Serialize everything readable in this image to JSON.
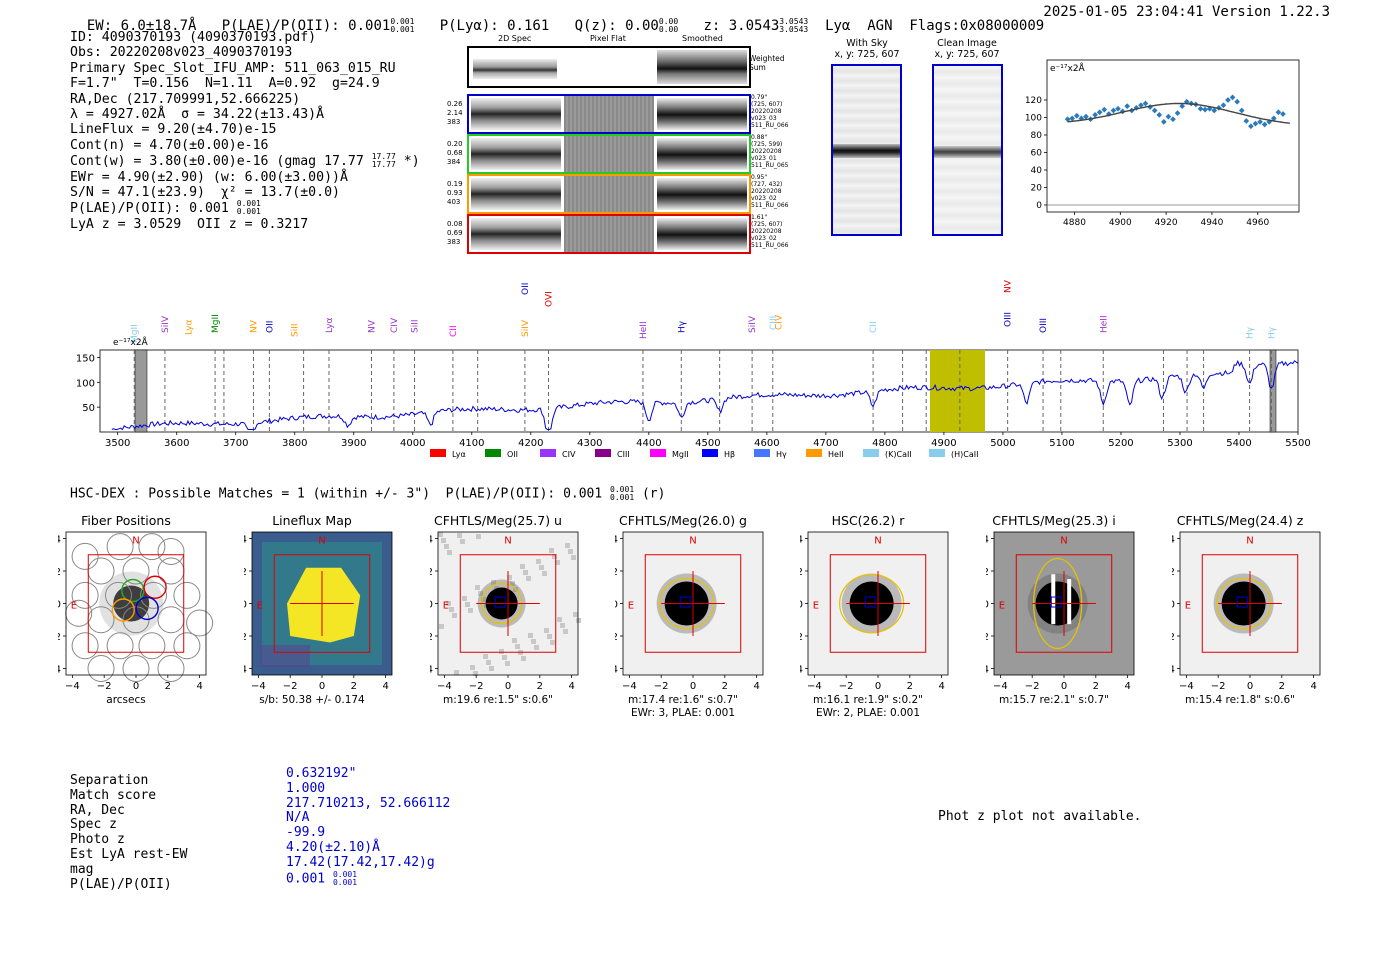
{
  "header": {
    "ew": "EW: 6.0±18.7Å",
    "plae": "P(LAE)/P(OII): 0.001",
    "plae_hi": "0.001",
    "plae_lo": "0.001",
    "plya": "P(Lyα): 0.161",
    "qz": "Q(z): 0.00",
    "qz_hi": "0.00",
    "qz_lo": "0.00",
    "z": "z: 3.0543",
    "z_hi": "3.0543",
    "z_lo": "3.0543",
    "tags": "Lyα  AGN  Flags:0x08000009",
    "timestamp": "2025-01-05 23:04:41  Version 1.22.3"
  },
  "info": {
    "id": "ID: 4090370193 (4090370193.pdf)",
    "obs": "Obs: 20220208v023_4090370193",
    "primary": "Primary Spec_Slot_IFU_AMP: 511_063_015_RU",
    "fiber": "F=1.7\"  T=0.156  N=1.11  A=0.92  g=24.9",
    "radec": "RA,Dec (217.709991,52.666225)",
    "lambda": "λ = 4927.02Å  σ = 34.22(±13.43)Å",
    "lineflux": "LineFlux = 9.20(±4.70)e-15",
    "contn": "Cont(n) = 4.70(±0.00)e-16",
    "contw": "Cont(w) = 3.80(±0.00)e-16 (gmag 17.77",
    "contw_hi": "17.77",
    "contw_lo": "17.77",
    "contw_end": " *)",
    "ewr": "EWr = 4.90(±2.90) (w: 6.00(±3.00))Å",
    "sn": "S/N = 47.1(±23.9)  χ² = 13.7(±0.0)",
    "plae": "P(LAE)/P(OII): 0.001",
    "plae_hi": "0.001",
    "plae_lo": "0.001",
    "lya_z": "LyA z = 3.0529  OII z = 0.3217"
  },
  "spec2d": {
    "headers": [
      "2D Spec",
      "Pixel Flat",
      "Smoothed"
    ],
    "weighted_label": "Weighted Sum",
    "rows": [
      {
        "left": [
          "0.26",
          "2.14",
          "383"
        ],
        "right": [
          "0.79\"",
          "(725, 607)",
          "20220208",
          "v023_03",
          "511_RU_066"
        ],
        "color": "#0000cc"
      },
      {
        "left": [
          "0.20",
          "0.68",
          "384"
        ],
        "right": [
          "0.88\"",
          "(725, 599)",
          "20220208",
          "v023_01",
          "511_RU_065"
        ],
        "color": "#22cc22"
      },
      {
        "left": [
          "0.19",
          "0.93",
          "403"
        ],
        "right": [
          "0.95\"",
          "(727, 432)",
          "20220208",
          "v023_02",
          "511_RU_066"
        ],
        "color": "#ff9900"
      },
      {
        "left": [
          "0.08",
          "0.69",
          "383"
        ],
        "right": [
          "1.61\"",
          "(725, 607)",
          "20220208",
          "v023_02",
          "511_RU_066"
        ],
        "color": "#dd0000"
      }
    ]
  },
  "sky": {
    "with_sky_title": "With Sky",
    "with_sky_xy": "x, y: 725, 607",
    "clean_title": "Clean Image",
    "clean_xy": "x, y: 725, 607"
  },
  "zoom_plot": {
    "unit": "e⁻¹⁷x2Å",
    "yticks": [
      "0",
      "20",
      "40",
      "60",
      "80",
      "100",
      "120"
    ],
    "xticks": [
      "4880",
      "4900",
      "4920",
      "4940",
      "4960"
    ]
  },
  "full_spec": {
    "unit": "e⁻¹⁷x2Å",
    "yticks": [
      "50",
      "100",
      "150"
    ],
    "xticks": [
      "3500",
      "3600",
      "3700",
      "3800",
      "3900",
      "4000",
      "4100",
      "4200",
      "4300",
      "4400",
      "4500",
      "4600",
      "4700",
      "4800",
      "4900",
      "5000",
      "5100",
      "5200",
      "5300",
      "5400",
      "5500"
    ],
    "lines": [
      {
        "label": "MgII",
        "color": "#88ccee"
      },
      {
        "label": "SiIV",
        "color": "#9933cc"
      },
      {
        "label": "Lyα",
        "color": "#ff9900"
      },
      {
        "label": "MgII",
        "color": "#008800"
      },
      {
        "label": "NV",
        "color": "#ff9900"
      },
      {
        "label": "OII",
        "color": "#0000cc"
      },
      {
        "label": "SiII",
        "color": "#ff9900"
      },
      {
        "label": "Lyα",
        "color": "#9933cc"
      },
      {
        "label": "NV",
        "color": "#9933cc"
      },
      {
        "label": "CIV",
        "color": "#9933cc"
      },
      {
        "label": "SiII",
        "color": "#9933cc"
      },
      {
        "label": "CII",
        "color": "#ff00ff"
      },
      {
        "label": "SiIV",
        "color": "#ff9900"
      },
      {
        "label": "OII",
        "color": "#0000cc"
      },
      {
        "label": "OVI",
        "color": "#dd0000"
      },
      {
        "label": "HeII",
        "color": "#9933cc"
      },
      {
        "label": "Hγ",
        "color": "#0000cc"
      },
      {
        "label": "SiIV",
        "color": "#9933cc"
      },
      {
        "label": "CIII",
        "color": "#88ccee"
      },
      {
        "label": "CIV",
        "color": "#ff9900"
      },
      {
        "label": "CII",
        "color": "#88ccee"
      },
      {
        "label": "OIII",
        "color": "#0000cc"
      },
      {
        "label": "NV",
        "color": "#dd0000"
      },
      {
        "label": "OIII",
        "color": "#0000cc"
      },
      {
        "label": "HeII",
        "color": "#9933cc"
      },
      {
        "label": "Hγ",
        "color": "#88ccee"
      },
      {
        "label": "Hγ",
        "color": "#88ccee"
      }
    ],
    "legend": [
      {
        "label": "Lyα",
        "color": "#ff0000"
      },
      {
        "label": "OII",
        "color": "#008800"
      },
      {
        "label": "CIV",
        "color": "#9933ff"
      },
      {
        "label": "CIII",
        "color": "#880088"
      },
      {
        "label": "MgII",
        "color": "#ff00ff"
      },
      {
        "label": "Hβ",
        "color": "#0000ff"
      },
      {
        "label": "Hγ",
        "color": "#4477ff"
      },
      {
        "label": "HeII",
        "color": "#ff9900"
      },
      {
        "label": "(K)CaII",
        "color": "#88ccee"
      },
      {
        "label": "(H)CaII",
        "color": "#88ccee"
      }
    ]
  },
  "hsc": {
    "summary": "HSC-DEX : Possible Matches = 1 (within +/- 3\")  P(LAE)/P(OII): 0.001",
    "summary_hi": "0.001",
    "summary_lo": "0.001",
    "summary_end": "(r)"
  },
  "cutouts": [
    {
      "title": "Fiber Positions",
      "cap1": "arcsecs",
      "cap2": ""
    },
    {
      "title": "Lineflux Map",
      "cap1": "s/b: 50.38 +/- 0.174",
      "cap2": ""
    },
    {
      "title": "CFHTLS/Meg(25.7) u",
      "cap1": "m:19.6  re:1.5\"  s:0.6\"",
      "cap2": ""
    },
    {
      "title": "CFHTLS/Meg(26.0) g",
      "cap1": "m:17.4  re:1.6\"  s:0.7\"",
      "cap2": "EWr: 3, PLAE: 0.001"
    },
    {
      "title": "HSC(26.2) r",
      "cap1": "m:16.1  re:1.9\"  s:0.2\"",
      "cap2": "EWr: 2, PLAE: 0.001"
    },
    {
      "title": "CFHTLS/Meg(25.3) i",
      "cap1": "m:15.7  re:2.1\"  s:0.7\"",
      "cap2": ""
    },
    {
      "title": "CFHTLS/Meg(24.4) z",
      "cap1": "m:15.4  re:1.8\"  s:0.6\"",
      "cap2": ""
    }
  ],
  "cutout_axes": {
    "ticks": [
      "−4",
      "−2",
      "0",
      "2",
      "4"
    ],
    "yticks": [
      "4",
      "2",
      "0",
      "−2",
      "−4"
    ],
    "north": "N",
    "east": "E"
  },
  "match": {
    "labels": [
      "Separation",
      "Match score",
      "RA, Dec",
      "Spec z",
      "Photo z",
      "Est LyA rest-EW",
      "mag",
      "P(LAE)/P(OII)"
    ],
    "values": [
      "0.632192\"",
      "1.000",
      "217.710213, 52.666112",
      "N/A",
      "-99.9",
      "4.20(±2.10)Å",
      "17.42(17.42,17.42)g",
      "0.001"
    ],
    "plae_hi": "0.001",
    "plae_lo": "0.001",
    "photz_note": "Phot z plot not available."
  },
  "colors": {
    "blue": "#0000cc",
    "red": "#dd0000",
    "yellow_band": "#bfbf00",
    "spectrum": "#0000dd"
  }
}
